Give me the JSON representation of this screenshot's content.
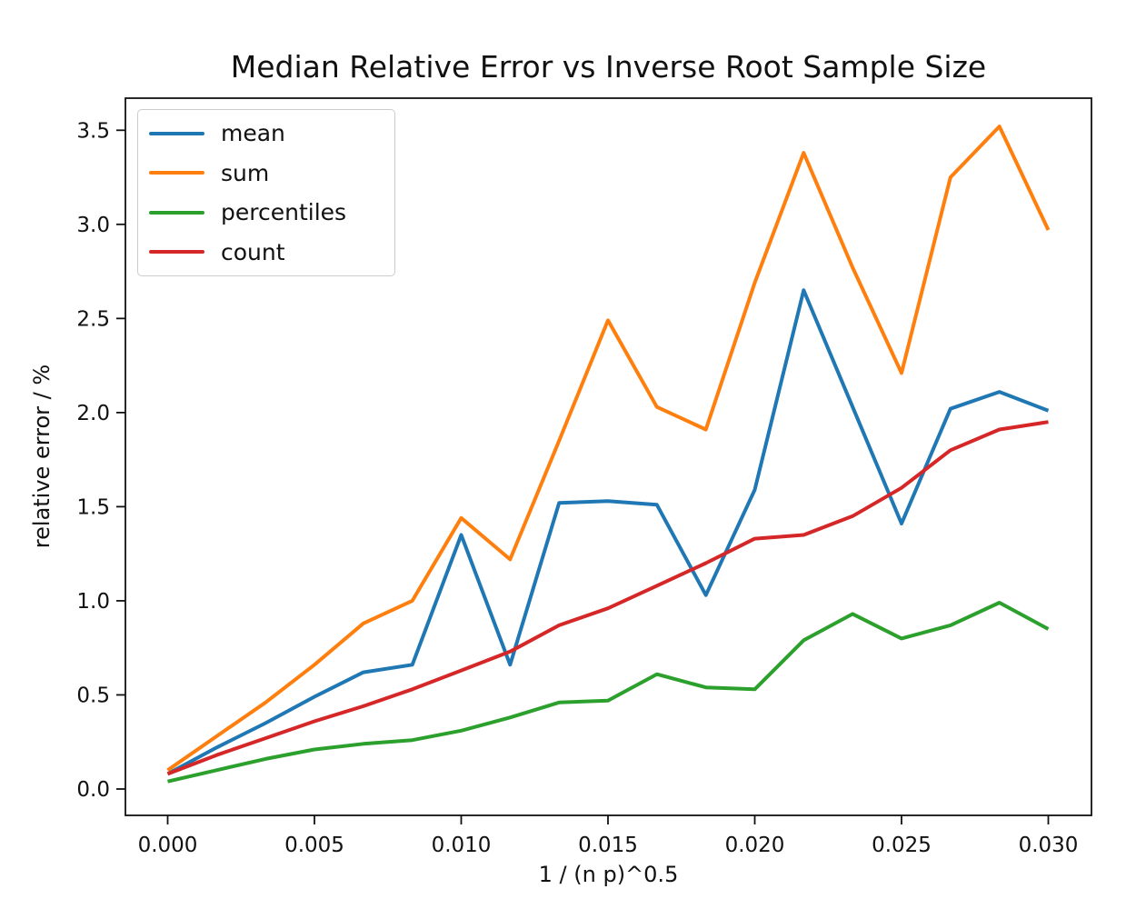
{
  "title": "Median Relative Error vs Inverse Root Sample Size",
  "chart_data": {
    "type": "line",
    "title": "Median Relative Error vs Inverse Root Sample Size",
    "xlabel": "1 / (n p)^0.5",
    "ylabel": "relative error / %",
    "xlim": [
      -0.00145,
      0.0315
    ],
    "ylim": [
      -0.14,
      3.67
    ],
    "grid": false,
    "legend_position": "upper left",
    "x_ticks": [
      {
        "value": 0.0,
        "label": "0.000"
      },
      {
        "value": 0.005,
        "label": "0.005"
      },
      {
        "value": 0.01,
        "label": "0.010"
      },
      {
        "value": 0.015,
        "label": "0.015"
      },
      {
        "value": 0.02,
        "label": "0.020"
      },
      {
        "value": 0.025,
        "label": "0.025"
      },
      {
        "value": 0.03,
        "label": "0.030"
      }
    ],
    "y_ticks": [
      {
        "value": 0.0,
        "label": "0.0"
      },
      {
        "value": 0.5,
        "label": "0.5"
      },
      {
        "value": 1.0,
        "label": "1.0"
      },
      {
        "value": 1.5,
        "label": "1.5"
      },
      {
        "value": 2.0,
        "label": "2.0"
      },
      {
        "value": 2.5,
        "label": "2.5"
      },
      {
        "value": 3.0,
        "label": "3.0"
      },
      {
        "value": 3.5,
        "label": "3.5"
      }
    ],
    "x": [
      0.0,
      0.001667,
      0.003333,
      0.005,
      0.006667,
      0.008333,
      0.01,
      0.011667,
      0.013333,
      0.015,
      0.016667,
      0.018333,
      0.02,
      0.021667,
      0.023333,
      0.025,
      0.026667,
      0.028333,
      0.03
    ],
    "series": [
      {
        "name": "mean",
        "color": "#1f77b4",
        "values": [
          0.08,
          0.22,
          0.35,
          0.49,
          0.62,
          0.66,
          1.35,
          0.66,
          1.52,
          1.53,
          1.51,
          1.03,
          1.59,
          2.65,
          2.03,
          1.41,
          2.02,
          2.11,
          2.01
        ]
      },
      {
        "name": "sum",
        "color": "#ff7f0e",
        "values": [
          0.1,
          0.28,
          0.46,
          0.66,
          0.88,
          1.0,
          1.44,
          1.22,
          1.85,
          2.49,
          2.03,
          1.91,
          2.69,
          3.38,
          2.77,
          2.21,
          3.25,
          3.52,
          2.97
        ]
      },
      {
        "name": "percentiles",
        "color": "#2ca02c",
        "values": [
          0.04,
          0.1,
          0.16,
          0.21,
          0.24,
          0.26,
          0.31,
          0.38,
          0.46,
          0.47,
          0.61,
          0.54,
          0.53,
          0.79,
          0.93,
          0.8,
          0.87,
          0.99,
          0.85
        ]
      },
      {
        "name": "count",
        "color": "#d62728",
        "values": [
          0.08,
          0.18,
          0.27,
          0.36,
          0.44,
          0.53,
          0.63,
          0.73,
          0.87,
          0.96,
          1.08,
          1.2,
          1.33,
          1.35,
          1.45,
          1.6,
          1.8,
          1.91,
          1.95
        ]
      }
    ]
  }
}
